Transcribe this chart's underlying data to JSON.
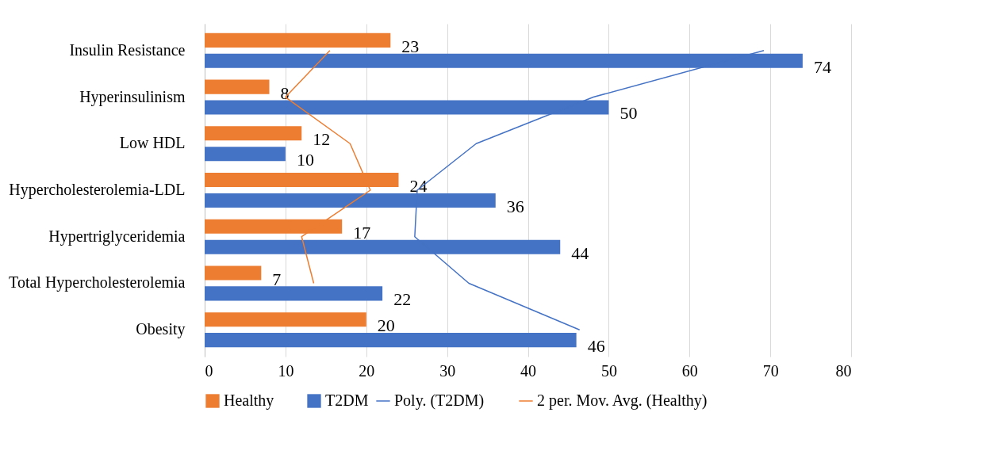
{
  "chart_data": {
    "type": "bar",
    "orientation": "horizontal",
    "categories": [
      "Insulin Resistance",
      "Hyperinsulinism",
      "Low HDL",
      "Hypercholesterolemia-LDL",
      "Hypertriglyceridemia",
      "Total Hypercholesterolemia",
      "Obesity"
    ],
    "series": [
      {
        "name": "Healthy",
        "color": "#ed7d31",
        "values": [
          23,
          8,
          12,
          24,
          17,
          7,
          20
        ],
        "value_labels": [
          "23",
          "8",
          "12",
          "24",
          "17",
          "7",
          "20"
        ]
      },
      {
        "name": "T2DM",
        "color": "#4472c4",
        "values": [
          74,
          50,
          10,
          36,
          44,
          22,
          46
        ],
        "value_labels": [
          "74",
          "50",
          "10",
          "36",
          "44",
          "22",
          "46"
        ]
      },
      {
        "name": "Poly. (T2DM)",
        "type": "line",
        "color": "#4472c4",
        "values": [
          69.2,
          48.1,
          33.6,
          26.3,
          26.0,
          32.7,
          46.4
        ]
      },
      {
        "name": "2 per. Mov. Avg. (Healthy)",
        "type": "line",
        "color": "#ed7d31",
        "values": [
          15.5,
          10,
          18,
          20.5,
          12,
          13.5,
          null
        ]
      }
    ],
    "xlim": [
      0,
      80
    ],
    "xticks": [
      0,
      10,
      20,
      30,
      40,
      50,
      60,
      70,
      80
    ],
    "grid": "x",
    "legend": "bottom"
  }
}
